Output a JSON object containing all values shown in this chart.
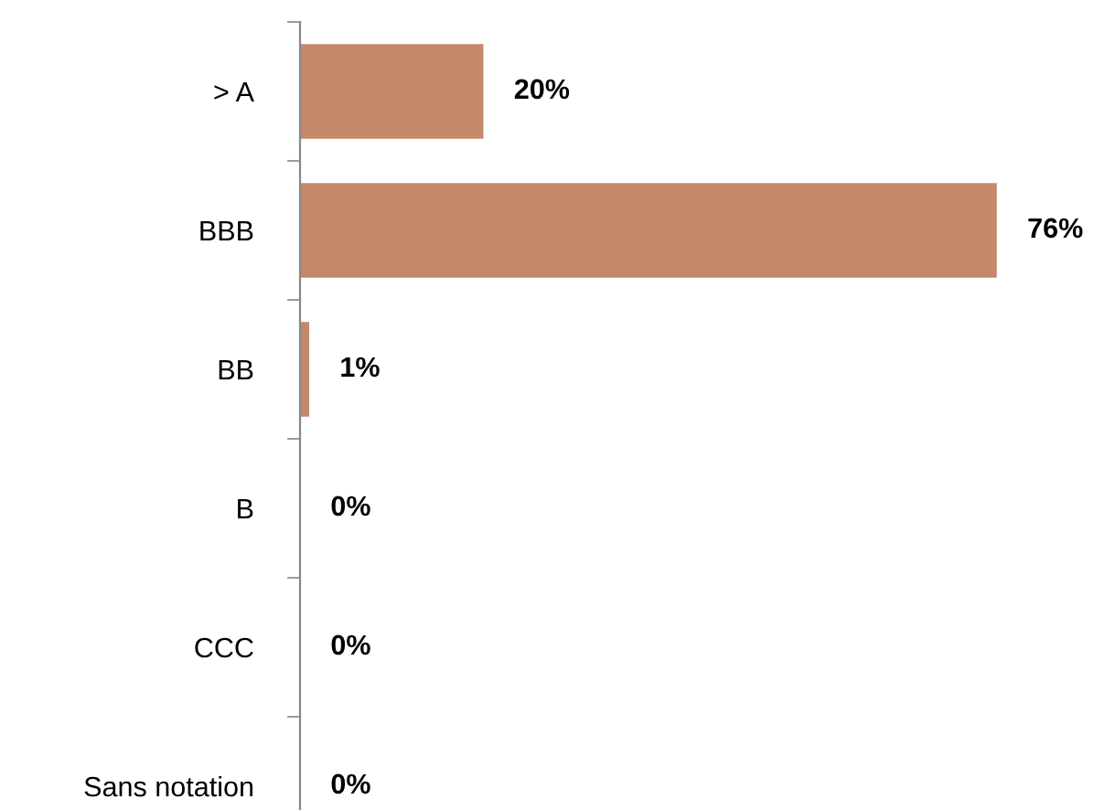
{
  "chart_data": {
    "type": "bar",
    "orientation": "horizontal",
    "categories": [
      "> A",
      "BBB",
      "BB",
      "B",
      "CCC",
      "Sans notation"
    ],
    "values": [
      20,
      76,
      1,
      0,
      0,
      0
    ],
    "color": "#c4886a",
    "value_labels": [
      "20%",
      "76%",
      "1%",
      "0%",
      "0%",
      "0%"
    ]
  }
}
